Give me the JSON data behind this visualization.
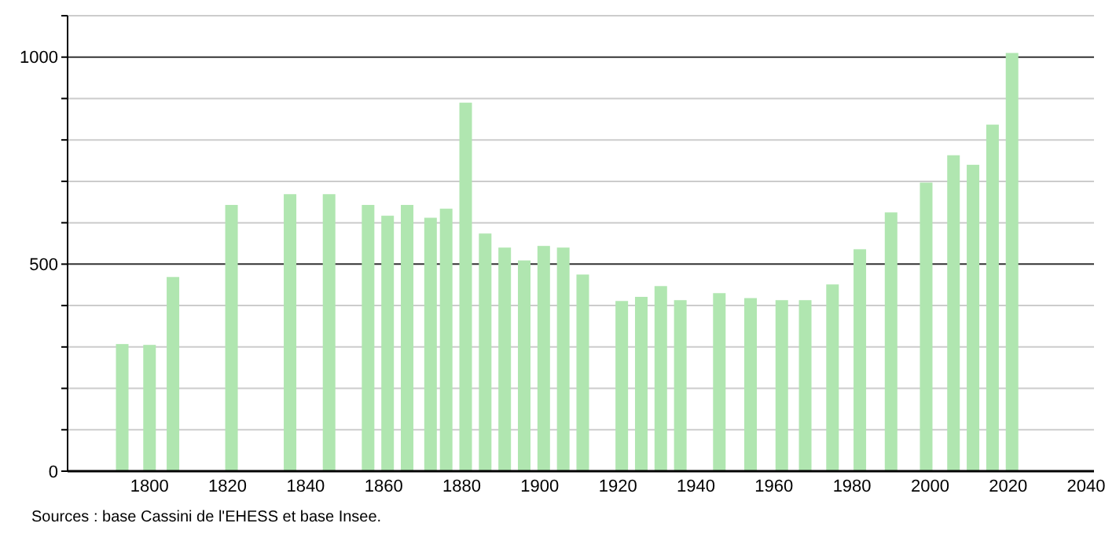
{
  "chart_data": {
    "type": "bar",
    "color": "#b0e6b0",
    "x": [
      1793,
      1800,
      1806,
      1821,
      1836,
      1846,
      1856,
      1861,
      1866,
      1872,
      1876,
      1881,
      1886,
      1891,
      1896,
      1901,
      1906,
      1911,
      1921,
      1926,
      1931,
      1936,
      1946,
      1954,
      1962,
      1968,
      1975,
      1982,
      1990,
      1999,
      2006,
      2011,
      2016,
      2021
    ],
    "values": [
      307,
      305,
      469,
      643,
      669,
      669,
      643,
      617,
      643,
      612,
      634,
      890,
      574,
      540,
      509,
      544,
      540,
      475,
      411,
      421,
      447,
      413,
      430,
      418,
      413,
      413,
      451,
      536,
      625,
      697,
      763,
      740,
      837,
      1010
    ],
    "xlim": [
      1779,
      2042
    ],
    "xticks": [
      1800,
      1820,
      1840,
      1860,
      1880,
      1900,
      1920,
      1940,
      1960,
      1980,
      2000,
      2020,
      2040
    ],
    "ylim": [
      0,
      1100
    ],
    "yticks": [
      0,
      {
        "value": 100,
        "label": null
      },
      {
        "value": 200,
        "label": null
      },
      {
        "value": 300,
        "label": null
      },
      {
        "value": 400,
        "label": null
      },
      500,
      {
        "value": 600,
        "label": null
      },
      {
        "value": 700,
        "label": null
      },
      {
        "value": 800,
        "label": null
      },
      {
        "value": 900,
        "label": null
      },
      1000,
      {
        "value": 1100,
        "label": null
      }
    ],
    "grid": "y",
    "annotations": [
      "Sources : base Cassini de l'EHESS et base Insee."
    ]
  }
}
